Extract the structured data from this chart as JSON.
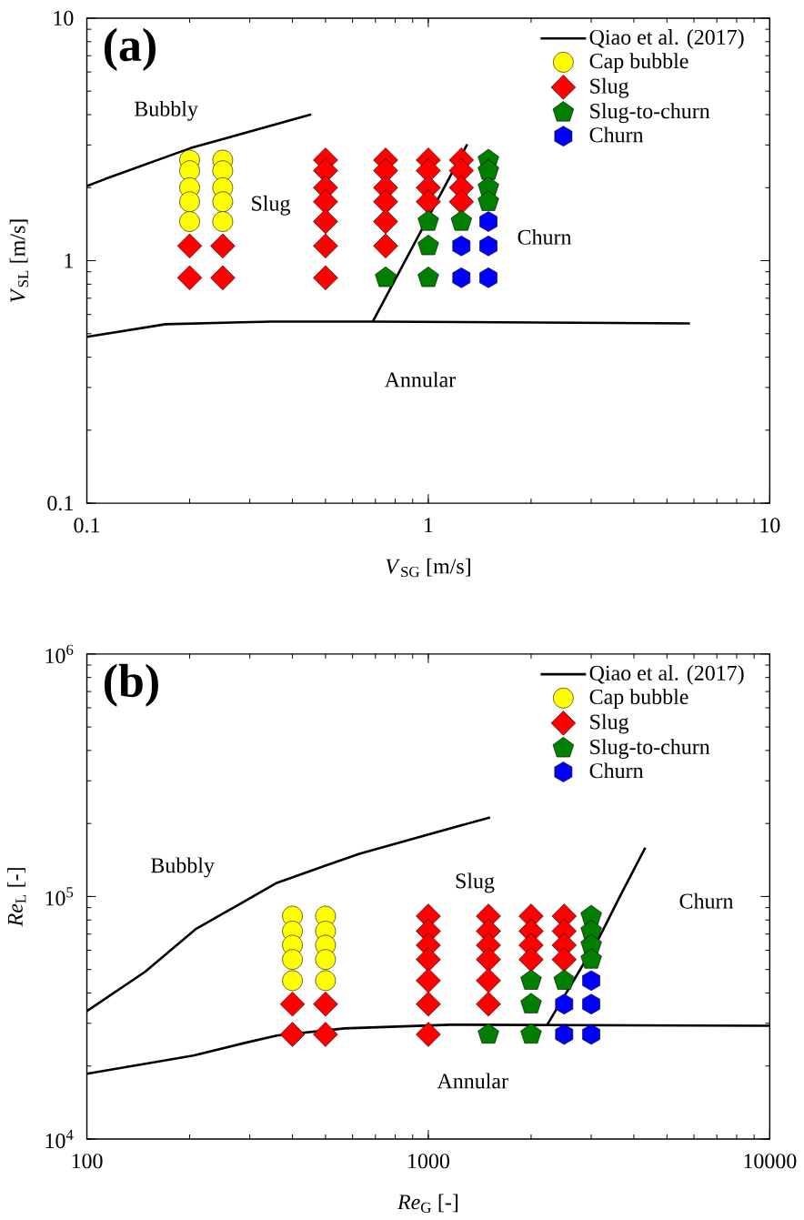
{
  "chart_data": [
    {
      "type": "scatter",
      "title": "(a)",
      "xlabel": "*V*$_{SG}$ [m/s]",
      "ylabel": "*V*$_{SL}$ [m/s]",
      "log": "xy",
      "legend": "top right",
      "xlim": [
        0.1,
        10
      ],
      "ylim": [
        0.1,
        10
      ],
      "xticks": [
        0.1,
        1,
        10
      ],
      "yticks": [
        0.1,
        1,
        10
      ],
      "series": [
        {
          "name": "Qiao et al. (2017)",
          "type": "line",
          "color": "#000000",
          "x": [
            0.1,
            0.113,
            0.201,
            0.454
          ],
          "values": [
            2.03,
            2.17,
            2.91,
            4.01
          ]
        },
        {
          "type": "line",
          "color": "#000000",
          "x": [
            0.1,
            0.17,
            0.348,
            0.688,
            5.84
          ],
          "values": [
            0.485,
            0.547,
            0.561,
            0.561,
            0.551
          ]
        },
        {
          "type": "line",
          "color": "#000000",
          "x": [
            0.688,
            1.3
          ],
          "values": [
            0.561,
            3.02
          ]
        },
        {
          "name": "Cap bubble",
          "color": "#ffff00",
          "marker": "circle",
          "x": [
            0.2,
            0.2,
            0.2,
            0.2,
            0.2,
            0.25,
            0.25,
            0.25,
            0.25,
            0.25
          ],
          "values": [
            2.6,
            2.35,
            2.0,
            1.75,
            1.45,
            2.6,
            2.35,
            2.0,
            1.75,
            1.45
          ]
        },
        {
          "name": "Slug",
          "color": "#ff0000",
          "marker": "diamond",
          "x": [
            0.2,
            0.2,
            0.25,
            0.25,
            0.5,
            0.5,
            0.5,
            0.5,
            0.5,
            0.5,
            0.5,
            0.75,
            0.75,
            0.75,
            0.75,
            0.75,
            0.75,
            1,
            1,
            1,
            1,
            1.25,
            1.25,
            1.25,
            1.25
          ],
          "values": [
            1.15,
            0.85,
            1.15,
            0.85,
            2.6,
            2.35,
            2.0,
            1.75,
            1.45,
            1.15,
            0.85,
            2.6,
            2.35,
            2.0,
            1.75,
            1.45,
            1.15,
            2.6,
            2.35,
            2.0,
            1.75,
            2.6,
            2.35,
            2.0,
            1.75
          ]
        },
        {
          "name": "Slug-to-churn",
          "color": "#007f00",
          "x": [
            0.75,
            1,
            1,
            1,
            1.25,
            1.5,
            1.5,
            1.5,
            1.5
          ],
          "values": [
            0.85,
            1.45,
            1.15,
            0.85,
            1.45,
            2.6,
            2.35,
            2.0,
            1.75
          ]
        },
        {
          "name": "Churn",
          "color": "#0000ff",
          "x": [
            1.25,
            1.25,
            1.5,
            1.5,
            1.5
          ],
          "values": [
            1.15,
            0.85,
            1.45,
            1.15,
            0.85
          ]
        }
      ],
      "annotations": [
        "Bubbly",
        "Slug",
        "Churn",
        "Annular"
      ]
    },
    {
      "type": "scatter",
      "title": "(b)",
      "xlabel": "*Re*$_{G}$ [-]",
      "ylabel": "*Re*$_{L}$ [-]",
      "log": "xy",
      "legend": "top right",
      "xlim": [
        100,
        10000
      ],
      "ylim": [
        10000,
        1000000
      ],
      "xticks": [
        100,
        1000,
        10000
      ],
      "yticks": [
        {
          "value": 10000,
          "label": "10$^{4}$"
        },
        {
          "value": 100000,
          "label": "10$^{5}$"
        },
        {
          "value": 1000000,
          "label": "10$^{6}$"
        }
      ],
      "series": [
        {
          "name": "Qiao et al. (2017)",
          "type": "line",
          "color": "#000000",
          "x": [
            100,
            148,
            208,
            360,
            491,
            628,
            1517
          ],
          "values": [
            33700,
            48900,
            73300,
            113800,
            133000,
            150000,
            212000
          ]
        },
        {
          "type": "line",
          "color": "#000000",
          "x": [
            100,
            205,
            290,
            360,
            569,
            1160,
            10000
          ],
          "values": [
            18600,
            22100,
            24900,
            26700,
            28600,
            29600,
            29300
          ]
        },
        {
          "type": "line",
          "color": "#000000",
          "x": [
            2230,
            3160,
            3640,
            4320
          ],
          "values": [
            29600,
            67300,
            100000,
            159000
          ]
        },
        {
          "name": "Cap bubble",
          "color": "#ffff00",
          "marker": "circle",
          "x": [
            400,
            400,
            400,
            400,
            400,
            500,
            500,
            500,
            500,
            500
          ],
          "values": [
            83000,
            72000,
            63000,
            55000,
            45000,
            83000,
            72000,
            63000,
            55000,
            45000
          ]
        },
        {
          "name": "Slug",
          "color": "#ff0000",
          "marker": "diamond",
          "x": [
            400,
            400,
            500,
            500,
            1000,
            1000,
            1000,
            1000,
            1000,
            1000,
            1000,
            1500,
            1500,
            1500,
            1500,
            1500,
            1500,
            2000,
            2000,
            2000,
            2000,
            2500,
            2500,
            2500,
            2500
          ],
          "values": [
            36000,
            27000,
            36000,
            27000,
            83000,
            72000,
            63000,
            55000,
            45000,
            36000,
            27000,
            83000,
            72000,
            63000,
            55000,
            45000,
            36000,
            83000,
            72000,
            63000,
            55000,
            83000,
            72000,
            63000,
            55000
          ]
        },
        {
          "name": "Slug-to-churn",
          "color": "#007f00",
          "x": [
            1500,
            2000,
            2000,
            2000,
            2500,
            3000,
            3000,
            3000,
            3000
          ],
          "values": [
            27000,
            45000,
            36000,
            27000,
            45000,
            83000,
            72000,
            63000,
            55000
          ]
        },
        {
          "name": "Churn",
          "color": "#0000ff",
          "x": [
            2500,
            2500,
            3000,
            3000,
            3000
          ],
          "values": [
            36000,
            27000,
            45000,
            36000,
            27000
          ]
        }
      ],
      "annotations": [
        "Bubbly",
        "Slug",
        "Churn",
        "Annular"
      ]
    }
  ]
}
